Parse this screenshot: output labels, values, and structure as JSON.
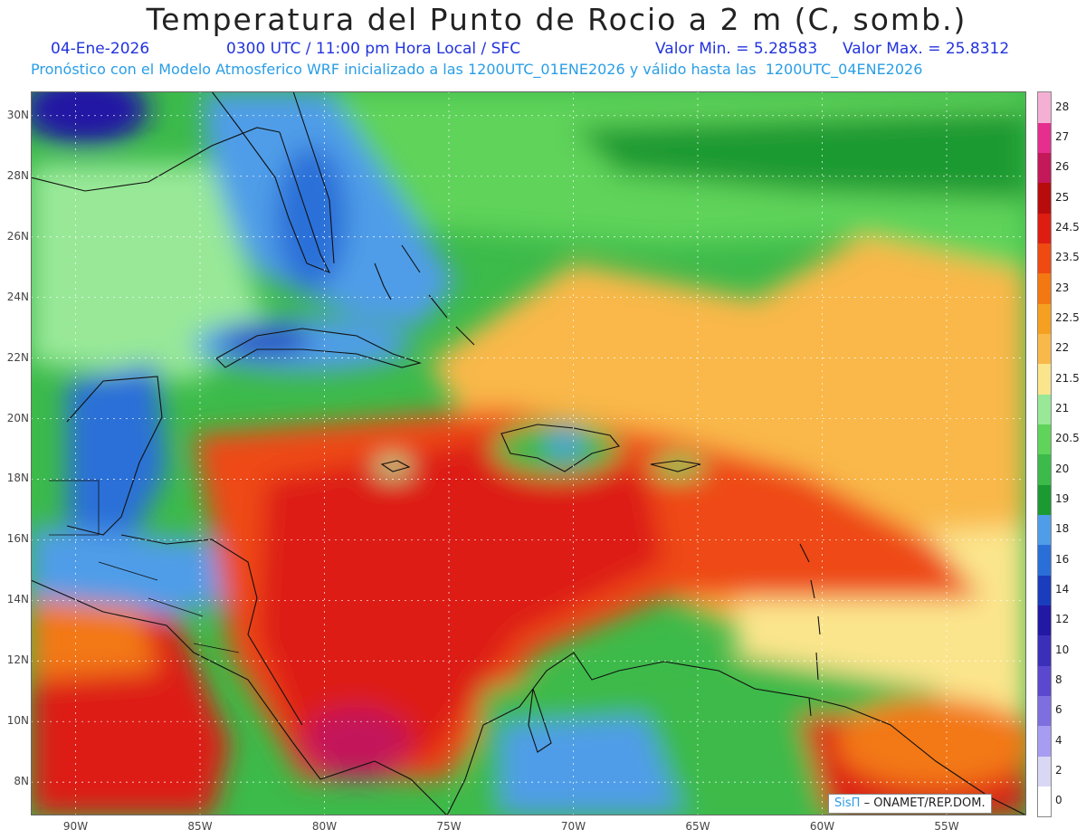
{
  "header": {
    "title": "Temperatura del Punto de Rocio a 2 m (C, somb.)",
    "date": "04-Ene-2026",
    "time": "0300 UTC / 11:00 pm Hora Local / SFC",
    "valmin": "Valor Min. = 5.28583",
    "valmax": "Valor Max. = 25.8312",
    "model": "Pronóstico con el Modelo Atmosferico WRF inicializado a las 1200UTC_01ENE2026 y válido hasta las  1200UTC_04ENE2026"
  },
  "axes": {
    "lon_labels": [
      "90W",
      "85W",
      "80W",
      "75W",
      "70W",
      "65W",
      "60W",
      "55W"
    ],
    "lon_values": [
      -90,
      -85,
      -80,
      -75,
      -70,
      -65,
      -60,
      -55
    ],
    "lat_labels": [
      "30N",
      "28N",
      "26N",
      "24N",
      "22N",
      "20N",
      "18N",
      "16N",
      "14N",
      "12N",
      "10N",
      "8N"
    ],
    "lat_values": [
      30,
      28,
      26,
      24,
      22,
      20,
      18,
      16,
      14,
      12,
      10,
      8
    ],
    "lon_range": [
      -91.8,
      -51.8
    ],
    "lat_range": [
      6.9,
      30.8
    ]
  },
  "colorbar": {
    "labels": [
      "0",
      "2",
      "4",
      "6",
      "8",
      "10",
      "12",
      "14",
      "16",
      "18",
      "19",
      "20",
      "20.5",
      "21",
      "21.5",
      "22",
      "22.5",
      "23",
      "23.5",
      "24.5",
      "25",
      "26",
      "27",
      "28"
    ],
    "colors": [
      "#ffffff",
      "#d8d8f4",
      "#a69cf2",
      "#7d6fe0",
      "#5a48cf",
      "#3a2fb8",
      "#2218a4",
      "#1a3dbd",
      "#2a6fd8",
      "#4f9de8",
      "#1a9a30",
      "#3cba4a",
      "#5fd35a",
      "#98e898",
      "#fbe58c",
      "#f9b84a",
      "#f5a020",
      "#f37812",
      "#ee4a12",
      "#dd1c12",
      "#b80c0c",
      "#c3185a",
      "#e52e8e",
      "#f4b0d4"
    ]
  },
  "credit": {
    "brand": "SisΠ",
    "text": "– ONAMET/REP.DOM."
  }
}
